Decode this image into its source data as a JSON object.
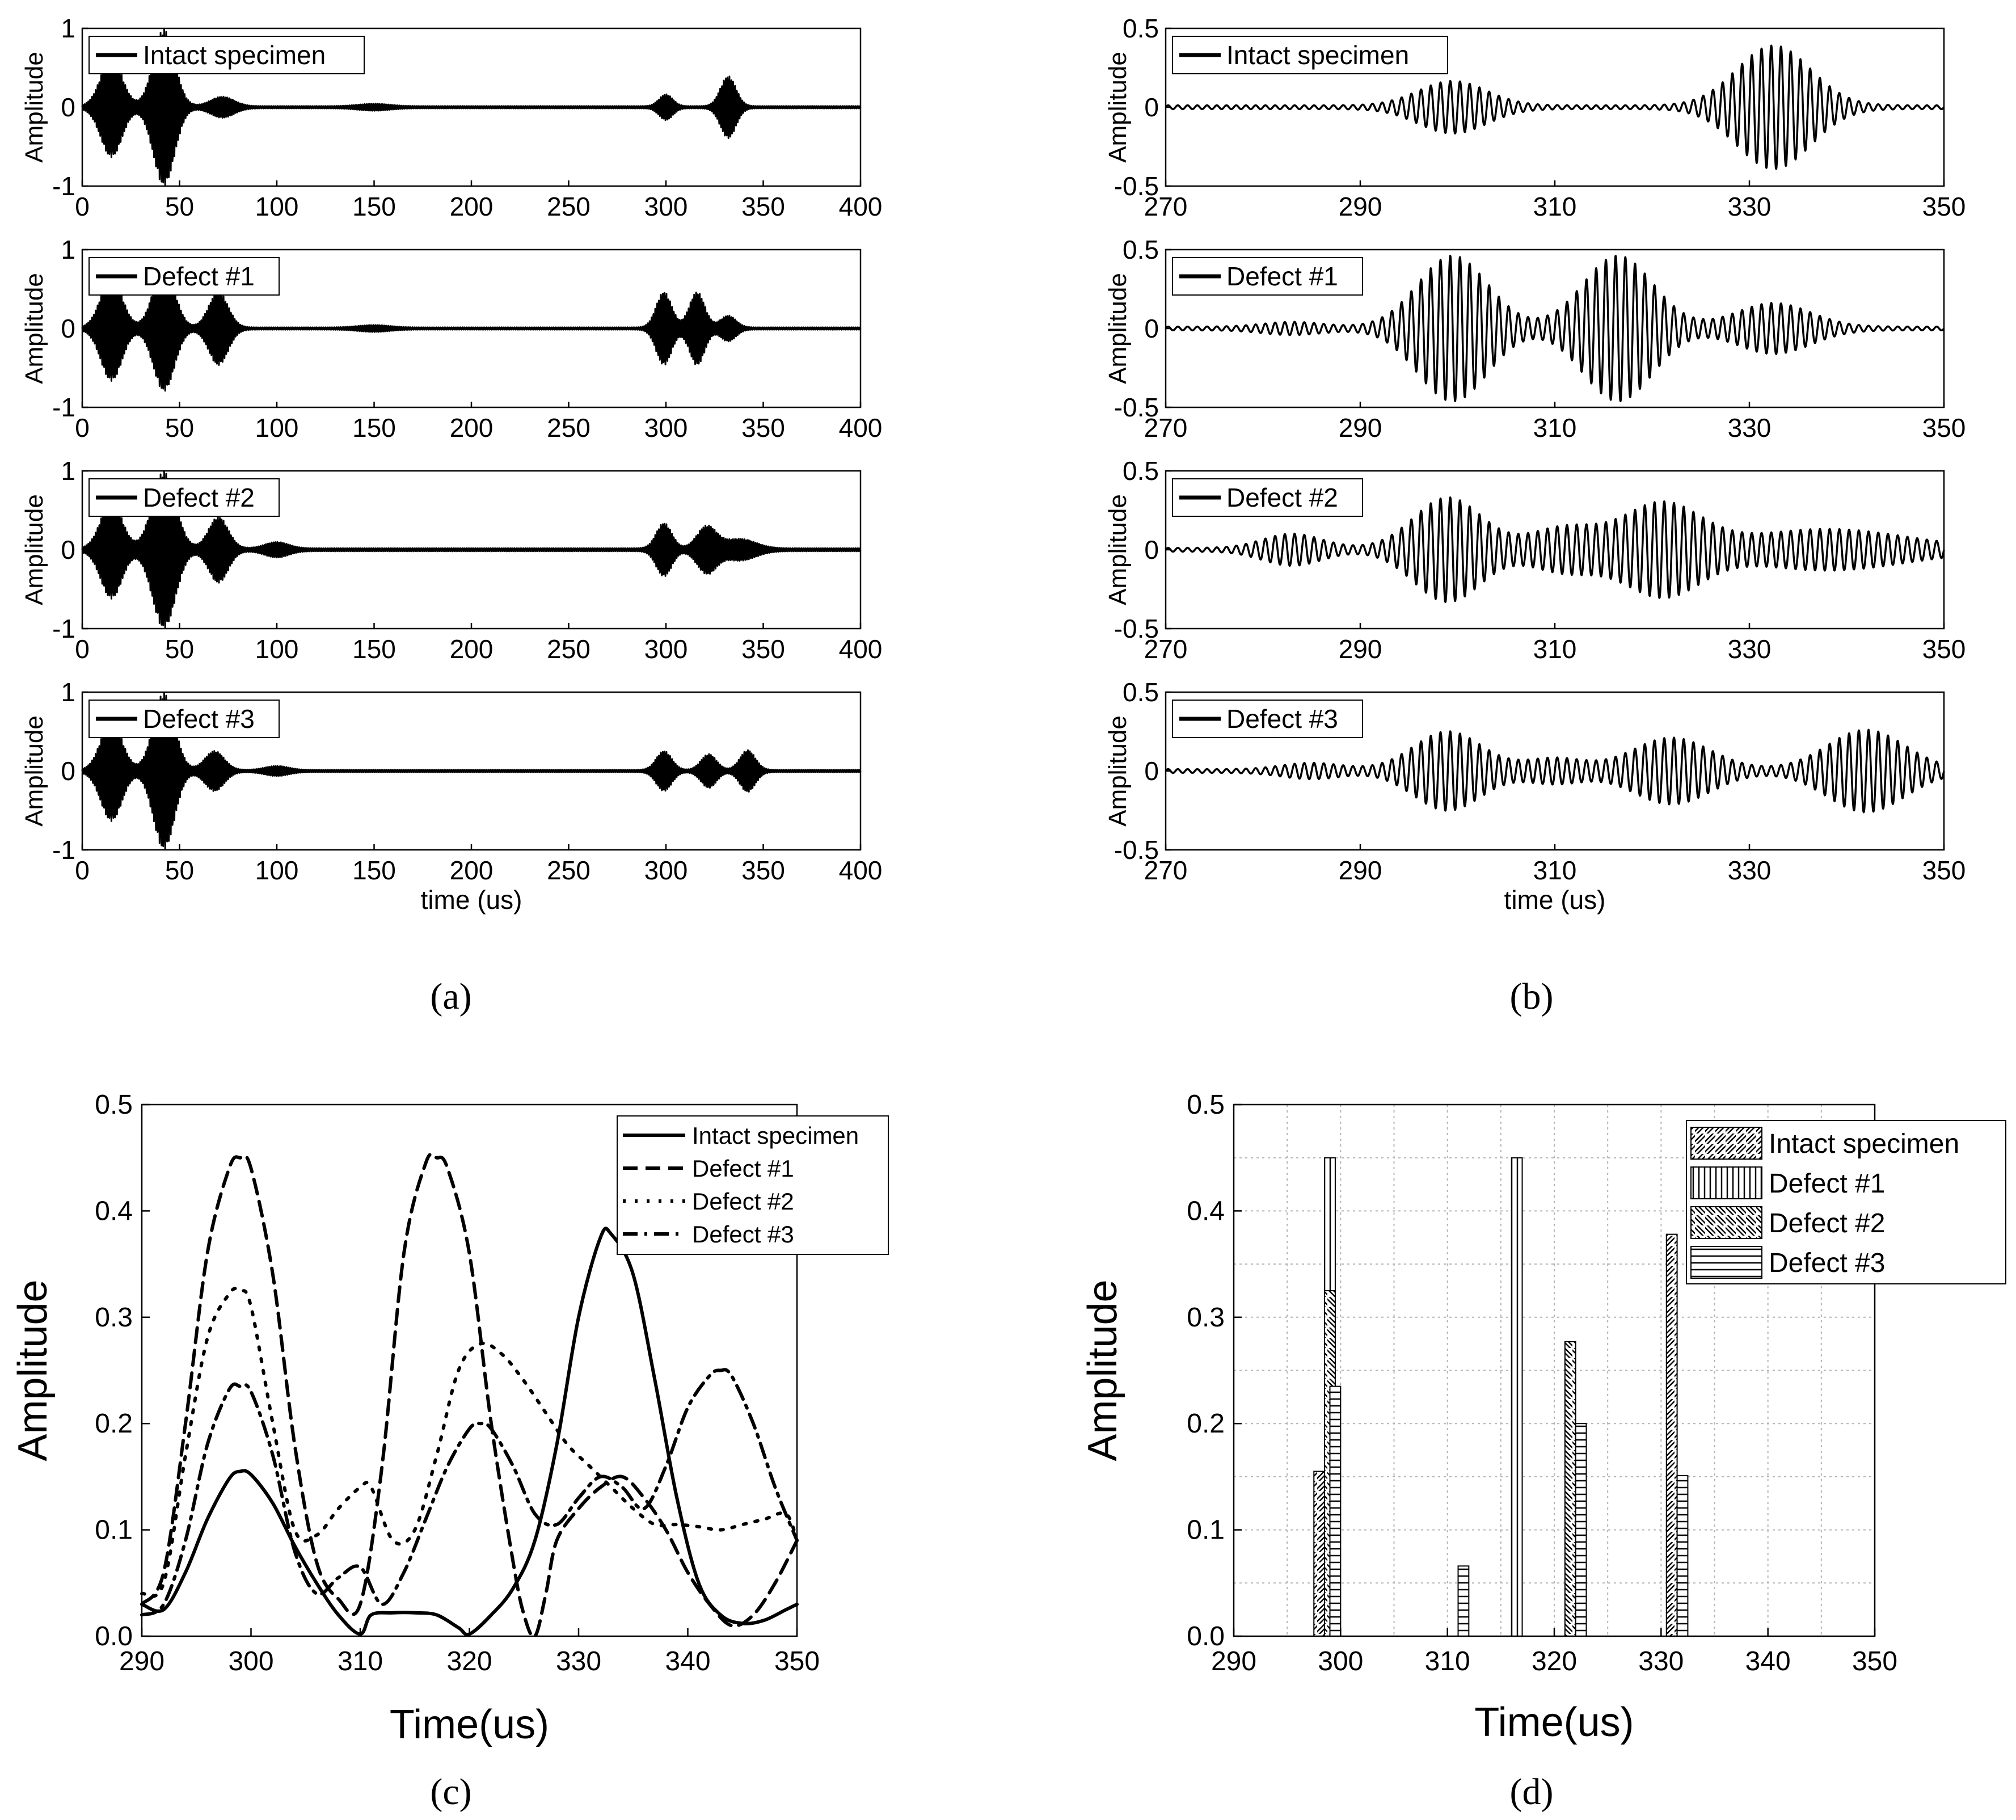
{
  "colors": {
    "ink": "#000000",
    "grid": "#b4b4b4",
    "background": "#ffffff"
  },
  "subfigure_labels": [
    "(a)",
    "(b)",
    "(c)",
    "(d)"
  ],
  "chart_data": [
    {
      "id": "a",
      "type": "line",
      "title": "",
      "xlabel": "time (us)",
      "ylabel": "Amplitude",
      "xlim": [
        0,
        400
      ],
      "xticks": [
        0,
        50,
        100,
        150,
        200,
        250,
        300,
        350,
        400
      ],
      "ylim": [
        -1,
        1
      ],
      "yticks": [
        -1,
        0,
        1
      ],
      "legend_position": "top-left",
      "panels": [
        {
          "legend": "Intact specimen",
          "packets": [
            [
              15,
              0.62,
              5.5
            ],
            [
              42,
              0.98,
              5.5
            ],
            [
              72,
              0.12,
              6
            ],
            [
              150,
              0.03,
              8
            ],
            [
              300,
              0.15,
              3.5
            ],
            [
              332,
              0.38,
              4
            ]
          ],
          "baseline_noise": 0.015
        },
        {
          "legend": "Defect #1",
          "packets": [
            [
              15,
              0.65,
              5.5
            ],
            [
              42,
              0.78,
              5.5
            ],
            [
              70,
              0.45,
              5
            ],
            [
              150,
              0.03,
              8
            ],
            [
              299,
              0.45,
              4
            ],
            [
              316,
              0.45,
              4
            ],
            [
              332,
              0.15,
              4
            ]
          ],
          "baseline_noise": 0.015
        },
        {
          "legend": "Defect #2",
          "packets": [
            [
              15,
              0.6,
              5.5
            ],
            [
              42,
              0.98,
              6
            ],
            [
              70,
              0.4,
              5
            ],
            [
              100,
              0.08,
              6
            ],
            [
              299,
              0.32,
              4
            ],
            [
              321,
              0.28,
              5
            ],
            [
              338,
              0.12,
              8
            ]
          ],
          "baseline_noise": 0.02
        },
        {
          "legend": "Defect #3",
          "packets": [
            [
              15,
              0.62,
              5.5
            ],
            [
              42,
              0.98,
              5.5
            ],
            [
              68,
              0.24,
              5
            ],
            [
              100,
              0.05,
              6
            ],
            [
              299,
              0.24,
              4
            ],
            [
              322,
              0.2,
              4
            ],
            [
              342,
              0.25,
              4
            ]
          ],
          "baseline_noise": 0.015
        }
      ]
    },
    {
      "id": "b",
      "type": "line",
      "title": "",
      "xlabel": "time (us)",
      "ylabel": "Amplitude",
      "xlim": [
        270,
        350
      ],
      "xticks": [
        270,
        290,
        310,
        330,
        350
      ],
      "ylim": [
        -0.5,
        0.5
      ],
      "yticks": [
        -0.5,
        0,
        0.5
      ],
      "legend_position": "top-left",
      "carrier_period_us": 1.0,
      "panels": [
        {
          "legend": "Intact specimen",
          "packets": [
            [
              299.5,
              0.155,
              3.5
            ],
            [
              332.5,
              0.38,
              3.8
            ]
          ],
          "baseline_noise": 0.012
        },
        {
          "legend": "Defect #1",
          "packets": [
            [
              299.5,
              0.45,
              3.6
            ],
            [
              316.5,
              0.45,
              3.6
            ],
            [
              332.5,
              0.15,
              3.8
            ],
            [
              283,
              0.03,
              3
            ]
          ],
          "baseline_noise": 0.012
        },
        {
          "legend": "Defect #2",
          "packets": [
            [
              283,
              0.09,
              3
            ],
            [
              299,
              0.32,
              3.5
            ],
            [
              311,
              0.13,
              3.5
            ],
            [
              321,
              0.28,
              4
            ],
            [
              338,
              0.12,
              8
            ]
          ],
          "baseline_noise": 0.012
        },
        {
          "legend": "Defect #3",
          "packets": [
            [
              285,
              0.04,
              3
            ],
            [
              299,
              0.24,
              3.5
            ],
            [
              310,
              0.07,
              3
            ],
            [
              322,
              0.2,
              4
            ],
            [
              342,
              0.25,
              4
            ]
          ],
          "baseline_noise": 0.012
        }
      ]
    },
    {
      "id": "c",
      "type": "line",
      "title": "",
      "xlabel": "Time(us)",
      "ylabel": "Amplitude",
      "xlim": [
        290,
        350
      ],
      "xticks": [
        290,
        300,
        310,
        320,
        330,
        340,
        350
      ],
      "ylim": [
        0,
        0.5
      ],
      "yticks": [
        0.0,
        0.1,
        0.2,
        0.3,
        0.4,
        0.5
      ],
      "legend_position": "top-right",
      "series": [
        {
          "name": "Intact specimen",
          "style": "solid",
          "x": [
            290,
            292,
            294,
            296,
            298,
            299,
            300,
            302,
            304,
            306,
            308,
            310,
            311,
            313,
            315,
            317,
            319,
            320,
            322,
            324,
            326,
            328,
            330,
            332,
            333,
            335,
            337,
            339,
            341,
            343,
            345,
            347,
            349,
            350
          ],
          "y": [
            0.03,
            0.025,
            0.06,
            0.11,
            0.148,
            0.155,
            0.152,
            0.125,
            0.085,
            0.05,
            0.02,
            0.002,
            0.02,
            0.022,
            0.022,
            0.02,
            0.008,
            0.002,
            0.02,
            0.045,
            0.09,
            0.18,
            0.3,
            0.375,
            0.378,
            0.34,
            0.24,
            0.13,
            0.05,
            0.02,
            0.012,
            0.015,
            0.025,
            0.03
          ]
        },
        {
          "name": "Defect #1",
          "style": "dashed",
          "x": [
            290,
            292,
            294,
            296,
            298,
            299,
            300,
            302,
            304,
            306,
            308,
            310,
            312,
            314,
            316,
            317,
            318,
            320,
            322,
            324,
            325,
            326,
            327,
            328,
            330,
            332,
            334,
            336,
            338,
            340,
            342,
            344,
            346,
            348,
            350
          ],
          "y": [
            0.03,
            0.06,
            0.2,
            0.36,
            0.44,
            0.45,
            0.44,
            0.34,
            0.18,
            0.07,
            0.035,
            0.03,
            0.16,
            0.36,
            0.445,
            0.45,
            0.44,
            0.36,
            0.2,
            0.07,
            0.02,
            0.0,
            0.04,
            0.09,
            0.12,
            0.14,
            0.15,
            0.13,
            0.1,
            0.06,
            0.03,
            0.01,
            0.02,
            0.05,
            0.09
          ]
        },
        {
          "name": "Defect #2",
          "style": "dotted",
          "x": [
            290,
            292,
            294,
            296,
            298,
            299,
            300,
            302,
            304,
            306,
            308,
            310,
            311,
            313,
            315,
            317,
            319,
            321,
            323,
            325,
            327,
            329,
            331,
            333,
            335,
            337,
            339,
            341,
            343,
            345,
            347,
            349,
            350
          ],
          "y": [
            0.04,
            0.05,
            0.17,
            0.28,
            0.322,
            0.325,
            0.31,
            0.2,
            0.1,
            0.095,
            0.12,
            0.14,
            0.14,
            0.09,
            0.1,
            0.17,
            0.25,
            0.275,
            0.265,
            0.24,
            0.21,
            0.18,
            0.16,
            0.14,
            0.12,
            0.105,
            0.105,
            0.103,
            0.1,
            0.105,
            0.11,
            0.115,
            0.09
          ]
        },
        {
          "name": "Defect #3",
          "style": "dashdot",
          "x": [
            290,
            292,
            294,
            296,
            298,
            299,
            300,
            302,
            304,
            306,
            308,
            310,
            312,
            314,
            316,
            318,
            320,
            321,
            322,
            324,
            326,
            328,
            330,
            332,
            334,
            336,
            338,
            340,
            342,
            343,
            344,
            346,
            348,
            350
          ],
          "y": [
            0.02,
            0.03,
            0.09,
            0.18,
            0.232,
            0.235,
            0.23,
            0.17,
            0.08,
            0.04,
            0.055,
            0.065,
            0.03,
            0.06,
            0.11,
            0.16,
            0.195,
            0.2,
            0.195,
            0.16,
            0.115,
            0.105,
            0.13,
            0.15,
            0.14,
            0.12,
            0.16,
            0.215,
            0.245,
            0.25,
            0.245,
            0.2,
            0.14,
            0.09
          ]
        }
      ]
    },
    {
      "id": "d",
      "type": "bar",
      "title": "",
      "xlabel": "Time(us)",
      "ylabel": "Amplitude",
      "xlim": [
        290,
        350
      ],
      "xticks": [
        290,
        300,
        310,
        320,
        330,
        340,
        350
      ],
      "ylim": [
        0,
        0.5
      ],
      "yticks": [
        0.0,
        0.1,
        0.2,
        0.3,
        0.4,
        0.5
      ],
      "grid": true,
      "legend_position": "top-right",
      "bar_width_us": 1.0,
      "series": [
        {
          "name": "Intact specimen",
          "pattern": "diag-up",
          "bars": [
            [
              298,
              0.155
            ],
            [
              331,
              0.378
            ]
          ]
        },
        {
          "name": "Defect #1",
          "pattern": "vertical",
          "bars": [
            [
              299,
              0.45
            ],
            [
              316.5,
              0.45
            ]
          ]
        },
        {
          "name": "Defect #2",
          "pattern": "diag-down",
          "bars": [
            [
              299,
              0.325
            ],
            [
              321.5,
              0.277
            ]
          ]
        },
        {
          "name": "Defect #3",
          "pattern": "horizontal",
          "bars": [
            [
              299.5,
              0.235
            ],
            [
              311.5,
              0.066
            ],
            [
              322.5,
              0.2
            ],
            [
              332,
              0.151
            ]
          ]
        }
      ]
    }
  ]
}
